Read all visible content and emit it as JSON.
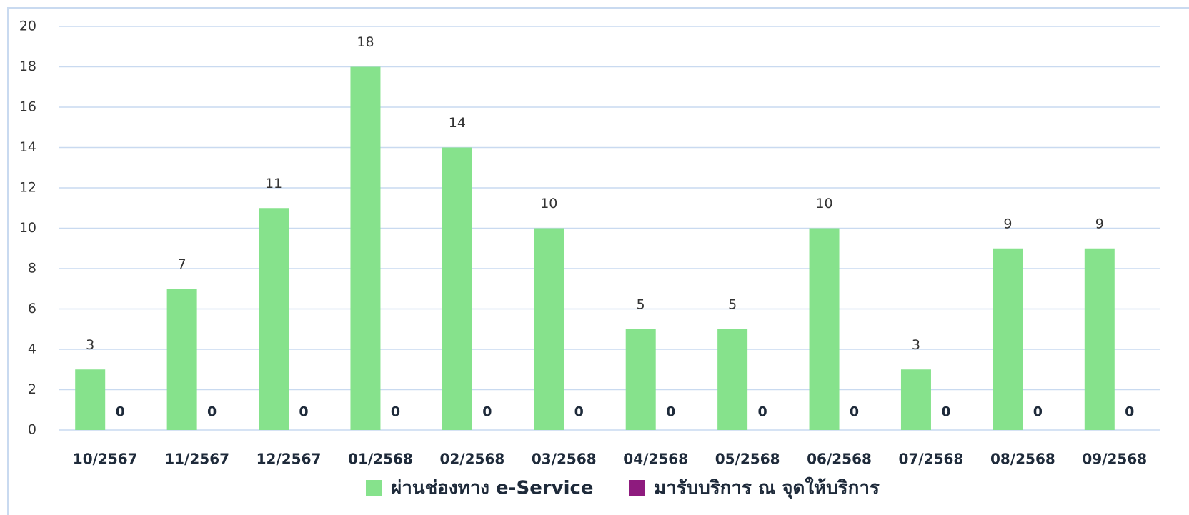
{
  "chart_data": {
    "type": "bar",
    "categories": [
      "10/2567",
      "11/2567",
      "12/2567",
      "01/2568",
      "02/2568",
      "03/2568",
      "04/2568",
      "05/2568",
      "06/2568",
      "07/2568",
      "08/2568",
      "09/2568"
    ],
    "series": [
      {
        "name": "ผ่านช่องทาง e-Service",
        "color": "#86e28c",
        "values": [
          3,
          7,
          11,
          18,
          14,
          10,
          5,
          5,
          10,
          3,
          9,
          9
        ]
      },
      {
        "name": "มารับบริการ ณ จุดให้บริการ",
        "color": "#8e1b7e",
        "values": [
          0,
          0,
          0,
          0,
          0,
          0,
          0,
          0,
          0,
          0,
          0,
          0
        ]
      }
    ],
    "ylim": [
      0,
      20
    ],
    "yticks": [
      0,
      2,
      4,
      6,
      8,
      10,
      12,
      14,
      16,
      18,
      20
    ],
    "grid": true,
    "legend": "bottom"
  }
}
